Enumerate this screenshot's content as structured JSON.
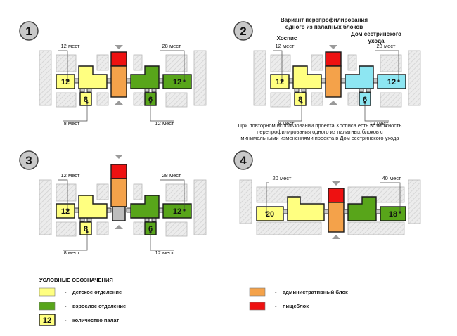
{
  "colors": {
    "children": "#ffff80",
    "adult": "#58a51a",
    "admin": "#f4a24a",
    "kitchen": "#ee1111",
    "nursing": "#8de6f2",
    "neighbor": "#e6e6e6",
    "corridor": "#c8c8c8",
    "outline": "#1a1a1a"
  },
  "panels": [
    {
      "number": "1",
      "labels": {
        "top_left": "12 мест",
        "top_right": "28 мест",
        "bottom_left": "8 мест",
        "bottom_right": "12 мест"
      },
      "rooms": {
        "left_big": "12",
        "left_small": "8",
        "right_big": "12",
        "right_small": "6"
      }
    },
    {
      "number": "2",
      "title_line1": "Вариант перепрофилирования",
      "title_line2": "одного из палатных блоков",
      "left_caption": "Хоспис",
      "right_caption_line1": "Дом сестринского",
      "right_caption_line2": "ухода",
      "labels": {
        "top_left": "12 мест",
        "top_right": "28 мест",
        "bottom_left": "8 мест",
        "bottom_right": "12 мест"
      },
      "rooms": {
        "left_big": "12",
        "left_small": "8",
        "right_big": "12",
        "right_small": "6"
      },
      "note_line1": "При повторном использовании проекта Хосписа есть возможность",
      "note_line2": "перепрофилирования одного из палатных блоков с",
      "note_line3": "минимальными изменениями проекта в Дом сестринского ухода"
    },
    {
      "number": "3",
      "labels": {
        "top_left": "12 мест",
        "top_right": "28 мест",
        "bottom_left": "8 мест",
        "bottom_right": "12 мест"
      },
      "rooms": {
        "left_big": "12",
        "left_small": "8",
        "right_big": "12",
        "right_small": "6"
      }
    },
    {
      "number": "4",
      "labels": {
        "top_left": "20 мест",
        "top_right": "40 мест"
      },
      "rooms": {
        "left_big": "20",
        "right_big": "18"
      }
    }
  ],
  "legend": {
    "title": "УСЛОВНЫЕ ОБОЗНАЧЕНИЯ",
    "dash": "-",
    "items": [
      {
        "id": "children",
        "label": "детское отделение"
      },
      {
        "id": "adult",
        "label": "взрослое отделение"
      },
      {
        "id": "count",
        "swatch_text": "12",
        "label": "количество палат"
      },
      {
        "id": "admin",
        "label": "административный блок"
      },
      {
        "id": "kitchen",
        "label": "пищеблок"
      }
    ]
  }
}
